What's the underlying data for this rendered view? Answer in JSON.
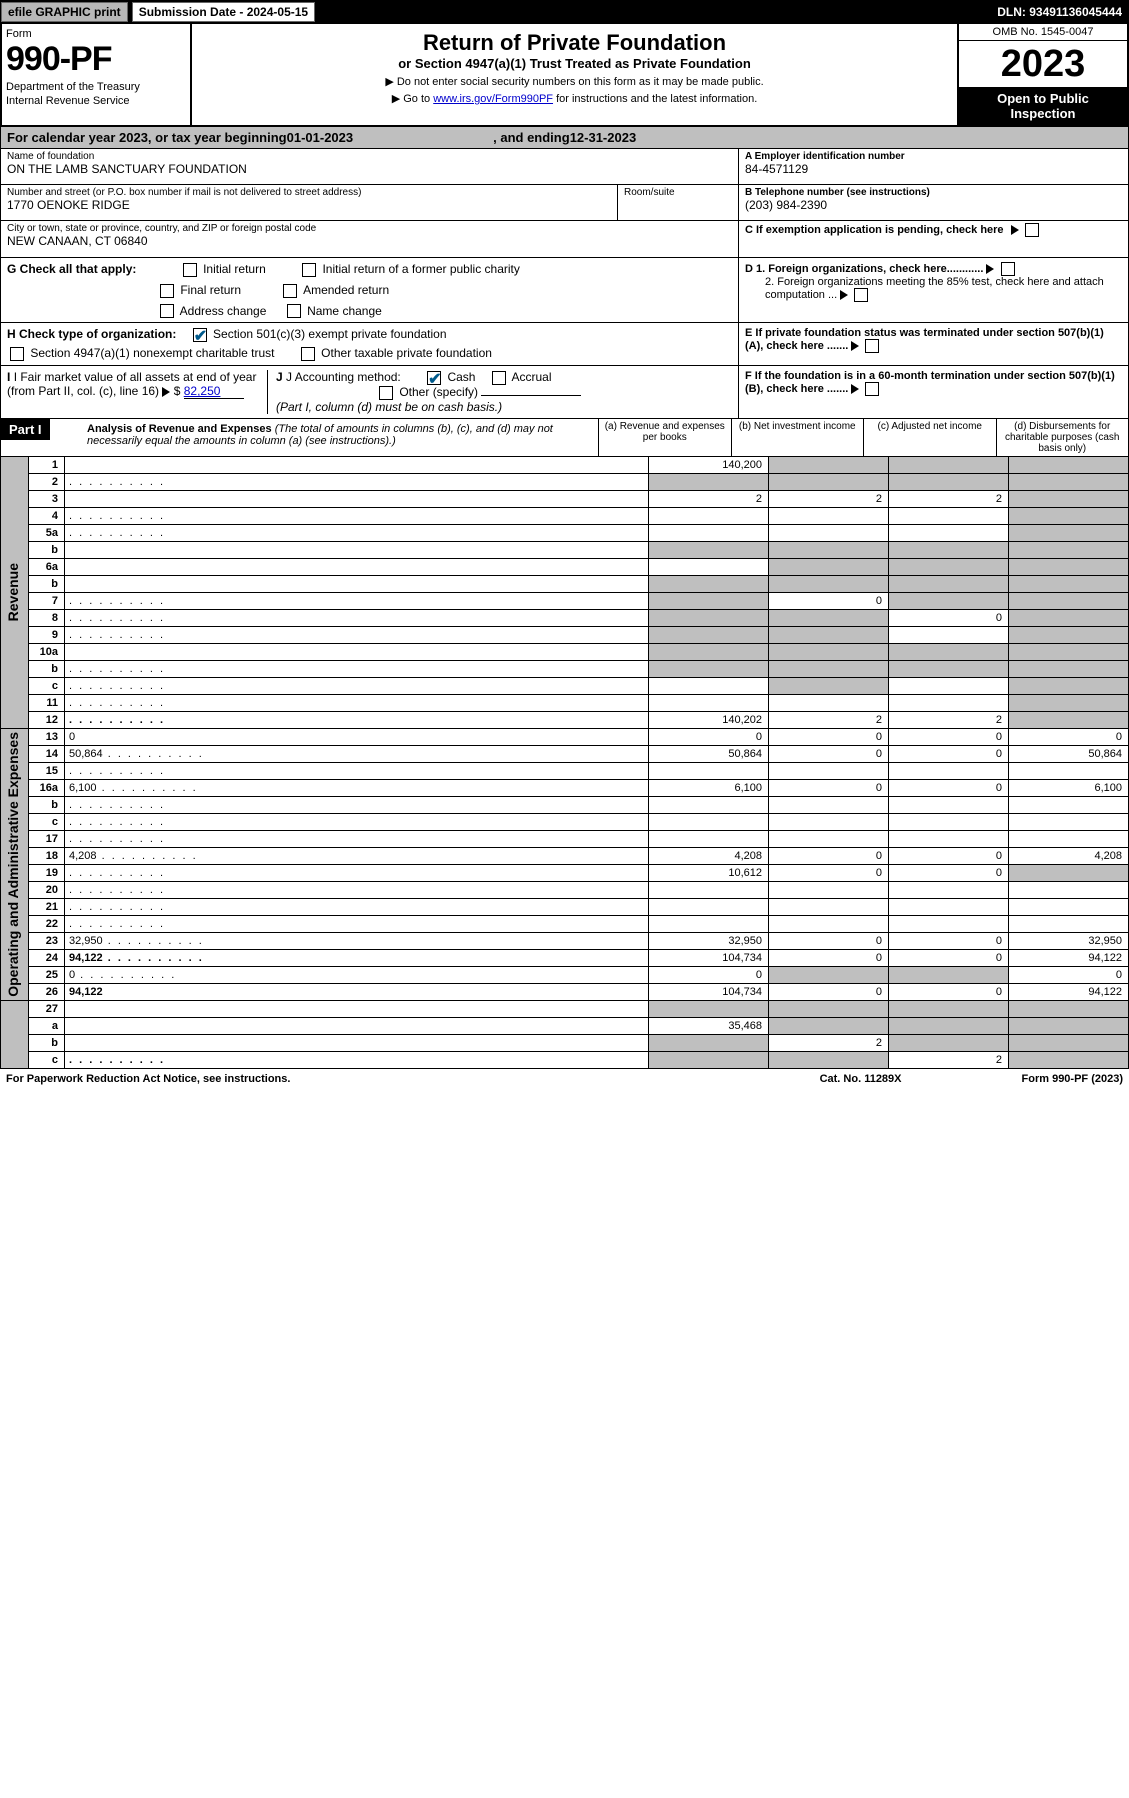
{
  "topbar": {
    "efile": "efile GRAPHIC print",
    "subdate": "Submission Date - 2024-05-15",
    "dln": "DLN: 93491136045444"
  },
  "header": {
    "form_label": "Form",
    "form_num": "990-PF",
    "dept1": "Department of the Treasury",
    "dept2": "Internal Revenue Service",
    "title": "Return of Private Foundation",
    "subtitle": "or Section 4947(a)(1) Trust Treated as Private Foundation",
    "note1": "▶ Do not enter social security numbers on this form as it may be made public.",
    "note2_pre": "▶ Go to ",
    "note2_link": "www.irs.gov/Form990PF",
    "note2_post": " for instructions and the latest information.",
    "omb": "OMB No. 1545-0047",
    "year": "2023",
    "open": "Open to Public Inspection"
  },
  "calyear": {
    "pre": "For calendar year 2023, or tax year beginning ",
    "begin": "01-01-2023",
    "mid": " , and ending ",
    "end": "12-31-2023"
  },
  "info": {
    "name_label": "Name of foundation",
    "name": "ON THE LAMB SANCTUARY FOUNDATION",
    "street_label": "Number and street (or P.O. box number if mail is not delivered to street address)",
    "street": "1770 OENOKE RIDGE",
    "room_label": "Room/suite",
    "city_label": "City or town, state or province, country, and ZIP or foreign postal code",
    "city": "NEW CANAAN, CT  06840",
    "a_label": "A Employer identification number",
    "a_val": "84-4571129",
    "b_label": "B Telephone number (see instructions)",
    "b_val": "(203) 984-2390",
    "c_label": "C If exemption application is pending, check here"
  },
  "checks": {
    "g_label": "G Check all that apply:",
    "g1": "Initial return",
    "g2": "Initial return of a former public charity",
    "g3": "Final return",
    "g4": "Amended return",
    "g5": "Address change",
    "g6": "Name change",
    "h_label": "H Check type of organization:",
    "h1": "Section 501(c)(3) exempt private foundation",
    "h2": "Section 4947(a)(1) nonexempt charitable trust",
    "h3": "Other taxable private foundation",
    "i_label": "I Fair market value of all assets at end of year (from Part II, col. (c), line 16)",
    "i_val": "82,250",
    "j_label": "J Accounting method:",
    "j1": "Cash",
    "j2": "Accrual",
    "j3": "Other (specify)",
    "j_note": "(Part I, column (d) must be on cash basis.)",
    "d1": "D 1. Foreign organizations, check here............",
    "d2": "2. Foreign organizations meeting the 85% test, check here and attach computation ...",
    "e": "E If private foundation status was terminated under section 507(b)(1)(A), check here .......",
    "f": "F If the foundation is in a 60-month termination under section 507(b)(1)(B), check here ......."
  },
  "part1": {
    "label": "Part I",
    "title": "Analysis of Revenue and Expenses",
    "note": "(The total of amounts in columns (b), (c), and (d) may not necessarily equal the amounts in column (a) (see instructions).)",
    "col_a": "(a) Revenue and expenses per books",
    "col_b": "(b) Net investment income",
    "col_c": "(c) Adjusted net income",
    "col_d": "(d) Disbursements for charitable purposes (cash basis only)"
  },
  "sections": {
    "revenue": "Revenue",
    "expenses": "Operating and Administrative Expenses"
  },
  "rows": [
    {
      "n": "1",
      "d": "",
      "a": "140,200",
      "b": "",
      "c": "",
      "bs": true,
      "cs": true,
      "ds": true
    },
    {
      "n": "2",
      "d": "",
      "a": "",
      "b": "",
      "c": "",
      "as": true,
      "bs": true,
      "cs": true,
      "ds": true,
      "dot": true
    },
    {
      "n": "3",
      "d": "",
      "a": "2",
      "b": "2",
      "c": "2",
      "ds": true
    },
    {
      "n": "4",
      "d": "",
      "a": "",
      "b": "",
      "c": "",
      "ds": true,
      "dot": true
    },
    {
      "n": "5a",
      "d": "",
      "a": "",
      "b": "",
      "c": "",
      "ds": true,
      "dot": true
    },
    {
      "n": "b",
      "d": "",
      "a": "",
      "b": "",
      "c": "",
      "as": true,
      "bs": true,
      "cs": true,
      "ds": true
    },
    {
      "n": "6a",
      "d": "",
      "a": "",
      "b": "",
      "c": "",
      "bs": true,
      "cs": true,
      "ds": true
    },
    {
      "n": "b",
      "d": "",
      "a": "",
      "b": "",
      "c": "",
      "as": true,
      "bs": true,
      "cs": true,
      "ds": true
    },
    {
      "n": "7",
      "d": "",
      "a": "",
      "b": "0",
      "c": "",
      "as": true,
      "cs": true,
      "ds": true,
      "dot": true
    },
    {
      "n": "8",
      "d": "",
      "a": "",
      "b": "",
      "c": "0",
      "as": true,
      "bs": true,
      "ds": true,
      "dot": true
    },
    {
      "n": "9",
      "d": "",
      "a": "",
      "b": "",
      "c": "",
      "as": true,
      "bs": true,
      "ds": true,
      "dot": true
    },
    {
      "n": "10a",
      "d": "",
      "a": "",
      "b": "",
      "c": "",
      "as": true,
      "bs": true,
      "cs": true,
      "ds": true
    },
    {
      "n": "b",
      "d": "",
      "a": "",
      "b": "",
      "c": "",
      "as": true,
      "bs": true,
      "cs": true,
      "ds": true,
      "dot": true
    },
    {
      "n": "c",
      "d": "",
      "a": "",
      "b": "",
      "c": "",
      "bs": true,
      "ds": true,
      "dot": true
    },
    {
      "n": "11",
      "d": "",
      "a": "",
      "b": "",
      "c": "",
      "ds": true,
      "dot": true
    },
    {
      "n": "12",
      "d": "",
      "a": "140,202",
      "b": "2",
      "c": "2",
      "ds": true,
      "bold": true,
      "dot": true
    }
  ],
  "exp_rows": [
    {
      "n": "13",
      "d": "0",
      "a": "0",
      "b": "0",
      "c": "0"
    },
    {
      "n": "14",
      "d": "50,864",
      "a": "50,864",
      "b": "0",
      "c": "0",
      "dot": true
    },
    {
      "n": "15",
      "d": "",
      "a": "",
      "b": "",
      "c": "",
      "dot": true
    },
    {
      "n": "16a",
      "d": "6,100",
      "a": "6,100",
      "b": "0",
      "c": "0",
      "dot": true
    },
    {
      "n": "b",
      "d": "",
      "a": "",
      "b": "",
      "c": "",
      "dot": true
    },
    {
      "n": "c",
      "d": "",
      "a": "",
      "b": "",
      "c": "",
      "dot": true
    },
    {
      "n": "17",
      "d": "",
      "a": "",
      "b": "",
      "c": "",
      "dot": true
    },
    {
      "n": "18",
      "d": "4,208",
      "a": "4,208",
      "b": "0",
      "c": "0",
      "dot": true
    },
    {
      "n": "19",
      "d": "",
      "a": "10,612",
      "b": "0",
      "c": "0",
      "ds": true,
      "dot": true
    },
    {
      "n": "20",
      "d": "",
      "a": "",
      "b": "",
      "c": "",
      "dot": true
    },
    {
      "n": "21",
      "d": "",
      "a": "",
      "b": "",
      "c": "",
      "dot": true
    },
    {
      "n": "22",
      "d": "",
      "a": "",
      "b": "",
      "c": "",
      "dot": true
    },
    {
      "n": "23",
      "d": "32,950",
      "a": "32,950",
      "b": "0",
      "c": "0",
      "dot": true
    },
    {
      "n": "24",
      "d": "94,122",
      "a": "104,734",
      "b": "0",
      "c": "0",
      "bold": true,
      "dot": true
    },
    {
      "n": "25",
      "d": "0",
      "a": "0",
      "b": "",
      "c": "",
      "bs": true,
      "cs": true,
      "dot": true
    },
    {
      "n": "26",
      "d": "94,122",
      "a": "104,734",
      "b": "0",
      "c": "0",
      "bold": true
    }
  ],
  "net_rows": [
    {
      "n": "27",
      "d": "",
      "a": "",
      "b": "",
      "c": "",
      "as": true,
      "bs": true,
      "cs": true,
      "ds": true
    },
    {
      "n": "a",
      "d": "",
      "a": "35,468",
      "b": "",
      "c": "",
      "bs": true,
      "cs": true,
      "ds": true,
      "bold": true
    },
    {
      "n": "b",
      "d": "",
      "a": "",
      "b": "2",
      "c": "",
      "as": true,
      "cs": true,
      "ds": true,
      "bold": true
    },
    {
      "n": "c",
      "d": "",
      "a": "",
      "b": "",
      "c": "2",
      "as": true,
      "bs": true,
      "ds": true,
      "bold": true,
      "dot": true
    }
  ],
  "footer": {
    "l": "For Paperwork Reduction Act Notice, see instructions.",
    "m": "Cat. No. 11289X",
    "r": "Form 990-PF (2023)"
  }
}
